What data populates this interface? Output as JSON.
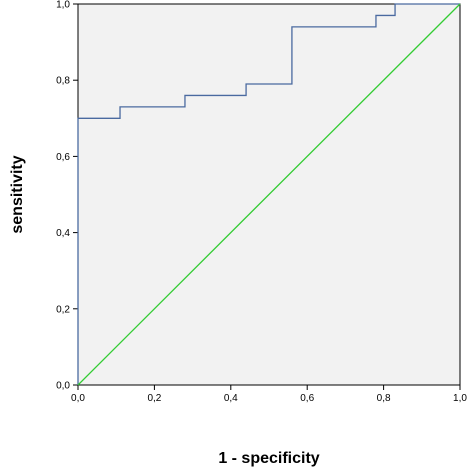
{
  "chart_data": {
    "type": "line",
    "title": "",
    "xlabel": "1 - specificity",
    "ylabel": "sensitivity",
    "xlim": [
      0,
      1
    ],
    "ylim": [
      0,
      1
    ],
    "grid": false,
    "legend": "none",
    "xticks": [
      0,
      0.2,
      0.4,
      0.6,
      0.8,
      1.0
    ],
    "yticks": [
      0,
      0.2,
      0.4,
      0.6,
      0.8,
      1.0
    ],
    "xtick_labels": [
      "0,0",
      "0,2",
      "0,4",
      "0,6",
      "0,8",
      "1,0"
    ],
    "ytick_labels": [
      "0,0",
      "0,2",
      "0,4",
      "0,6",
      "0,8",
      "1,0"
    ],
    "series": [
      {
        "color": "#4a6aa0",
        "x": [
          0.0,
          0.0,
          0.11,
          0.11,
          0.28,
          0.28,
          0.44,
          0.44,
          0.56,
          0.56,
          0.78,
          0.78,
          0.83,
          0.83,
          1.0
        ],
        "y": [
          0.0,
          0.7,
          0.7,
          0.73,
          0.73,
          0.76,
          0.76,
          0.79,
          0.79,
          0.94,
          0.94,
          0.97,
          0.97,
          1.0,
          1.0
        ]
      },
      {
        "color": "#33cc33",
        "x": [
          0,
          1
        ],
        "y": [
          0,
          1
        ]
      }
    ],
    "plot_background": "#f2f2f2",
    "axis_color": "#000000"
  }
}
